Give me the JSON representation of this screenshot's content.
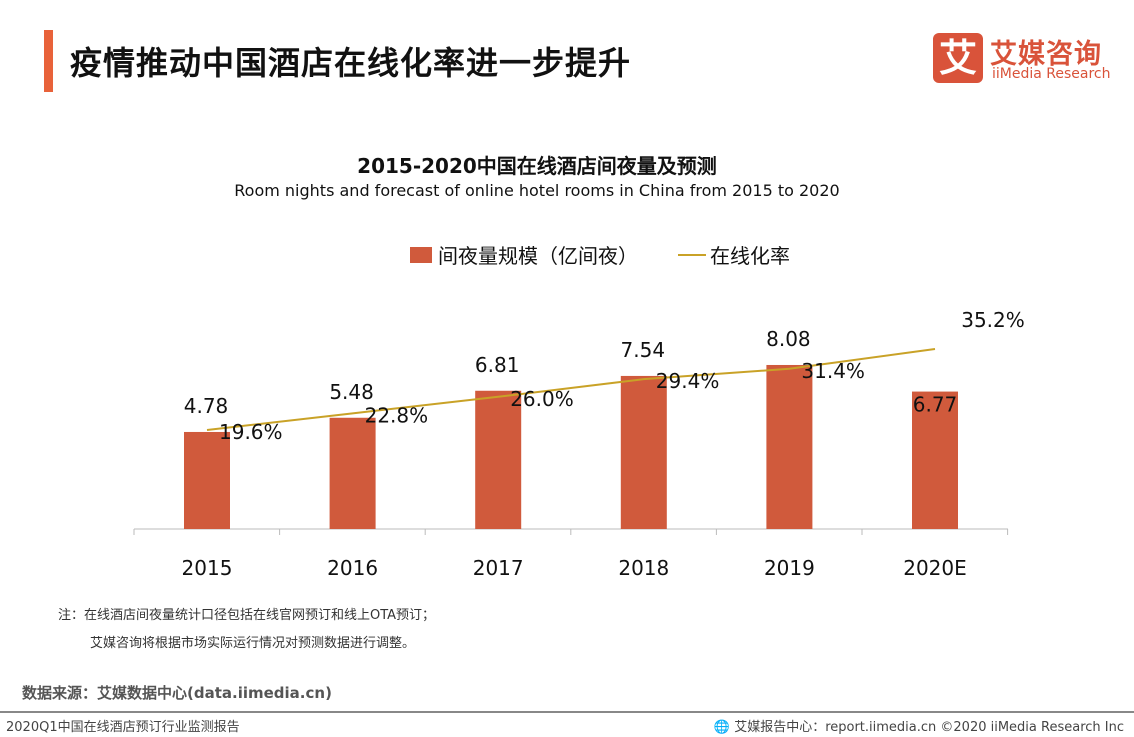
{
  "header": {
    "title": "疫情推动中国酒店在线化率进一步提升"
  },
  "logo": {
    "mark": "艾",
    "cn": "艾媒咨询",
    "en": "iiMedia Research"
  },
  "chart_data": {
    "type": "bar+line",
    "title": "2015-2020中国在线酒店间夜量及预测",
    "subtitle": "Room nights and forecast of online hotel rooms in China from 2015 to 2020",
    "categories": [
      "2015",
      "2016",
      "2017",
      "2018",
      "2019",
      "2020E"
    ],
    "series": [
      {
        "name": "间夜量规模（亿间夜）",
        "type": "bar",
        "values": [
          4.78,
          5.48,
          6.81,
          7.54,
          8.08,
          6.77
        ],
        "labels": [
          "4.78",
          "5.48",
          "6.81",
          "7.54",
          "8.08",
          "6.77"
        ],
        "color": "#D05A3C"
      },
      {
        "name": "在线化率",
        "type": "line",
        "values": [
          19.6,
          22.8,
          26.0,
          29.4,
          31.4,
          35.2
        ],
        "labels": [
          "19.6%",
          "22.8%",
          "26.0%",
          "29.4%",
          "31.4%",
          "35.2%"
        ],
        "color": "#C9A227"
      }
    ],
    "legend": "top"
  },
  "notes": {
    "line1": "注：在线酒店间夜量统计口径包括在线官网预订和线上OTA预订；",
    "line2": "艾媒咨询将根据市场实际运行情况对预测数据进行调整。"
  },
  "source": "数据来源：艾媒数据中心(data.iimedia.cn)",
  "footer": {
    "left": "2020Q1中国在线酒店预订行业监测报告",
    "right": "🌐 艾媒报告中心：report.iimedia.cn  ©2020  iiMedia Research  Inc"
  }
}
